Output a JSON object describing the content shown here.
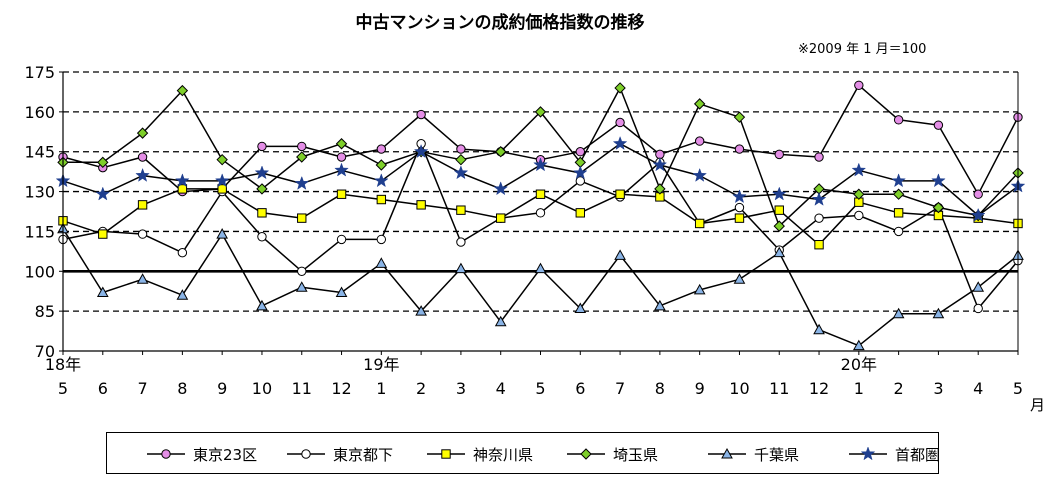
{
  "chart_data": {
    "type": "line",
    "title": "中古マンションの成約価格指数の推移",
    "note": "※2009 年 1 月＝100",
    "unit_label": "月",
    "categories": [
      "5",
      "6",
      "7",
      "8",
      "9",
      "10",
      "11",
      "12",
      "1",
      "2",
      "3",
      "4",
      "5",
      "6",
      "7",
      "8",
      "9",
      "10",
      "11",
      "12",
      "1",
      "2",
      "3",
      "4",
      "5"
    ],
    "year_labels": [
      {
        "index": 0,
        "label": "18年"
      },
      {
        "index": 8,
        "label": "19年"
      },
      {
        "index": 20,
        "label": "20年"
      }
    ],
    "ylim": [
      70,
      175
    ],
    "yticks": [
      70,
      85,
      100,
      115,
      130,
      145,
      160,
      175
    ],
    "dashed_gridlines": [
      85,
      115,
      130,
      145,
      160,
      175
    ],
    "baseline": 100,
    "series": [
      {
        "name": "東京23区",
        "marker": "circle",
        "fill": "#e48ee6",
        "values": [
          143,
          139,
          143,
          130,
          131,
          147,
          147,
          143,
          146,
          159,
          146,
          145,
          142,
          145,
          156,
          144,
          149,
          146,
          144,
          143,
          170,
          157,
          155,
          129,
          158
        ]
      },
      {
        "name": "東京都下",
        "marker": "circle",
        "fill": "#ffffff",
        "values": [
          112,
          115,
          114,
          107,
          130,
          113,
          100,
          112,
          112,
          148,
          111,
          120,
          122,
          134,
          128,
          141,
          118,
          124,
          108,
          120,
          121,
          115,
          124,
          86,
          104
        ]
      },
      {
        "name": "神奈川県",
        "marker": "square",
        "fill": "#ffff00",
        "values": [
          119,
          114,
          125,
          131,
          131,
          122,
          120,
          129,
          127,
          125,
          123,
          120,
          129,
          122,
          129,
          128,
          118,
          120,
          123,
          110,
          126,
          122,
          121,
          120,
          118
        ]
      },
      {
        "name": "埼玉県",
        "marker": "diamond",
        "fill": "#7ecf2a",
        "values": [
          141,
          141,
          152,
          168,
          142,
          131,
          143,
          148,
          140,
          145,
          142,
          145,
          160,
          141,
          169,
          131,
          163,
          158,
          117,
          131,
          129,
          129,
          124,
          121,
          137
        ]
      },
      {
        "name": "千葉県",
        "marker": "triangle",
        "fill": "#8ab4e6",
        "values": [
          116,
          92,
          97,
          91,
          114,
          87,
          94,
          92,
          103,
          85,
          101,
          81,
          101,
          86,
          106,
          87,
          93,
          97,
          107,
          78,
          72,
          84,
          84,
          94,
          106
        ]
      },
      {
        "name": "首都圏",
        "marker": "star",
        "fill": "#1f3f8f",
        "values": [
          134,
          129,
          136,
          134,
          134,
          137,
          133,
          138,
          134,
          145,
          137,
          131,
          140,
          137,
          148,
          140,
          136,
          128,
          129,
          127,
          138,
          134,
          134,
          121,
          132
        ]
      }
    ]
  }
}
